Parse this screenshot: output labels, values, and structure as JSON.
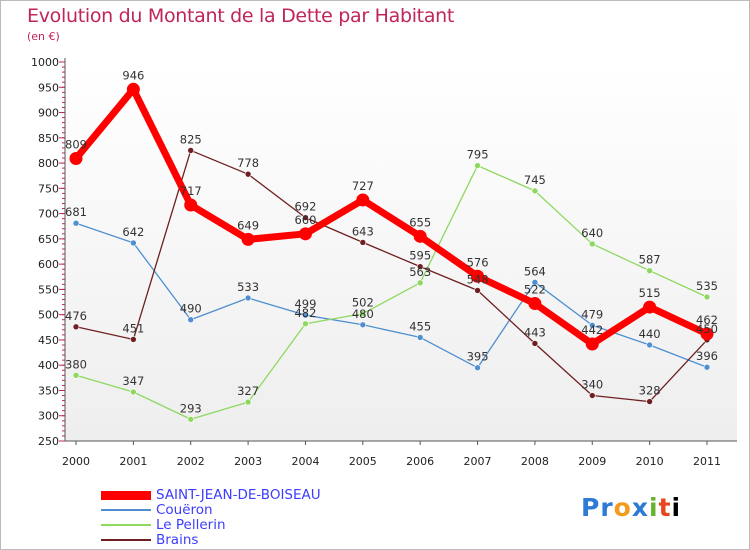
{
  "header": {
    "title": "Evolution du Montant de la Dette par Habitant",
    "unit": "(en €)"
  },
  "logo": {
    "text": "Proxiti"
  },
  "chart_data": {
    "type": "line",
    "title": "Evolution du Montant de la Dette par Habitant",
    "subtitle": "(en €)",
    "x": [
      "2000",
      "2001",
      "2002",
      "2003",
      "2004",
      "2005",
      "2006",
      "2007",
      "2008",
      "2009",
      "2010",
      "2011"
    ],
    "ylim": [
      250,
      1000
    ],
    "yticks": [
      250,
      300,
      350,
      400,
      450,
      500,
      550,
      600,
      650,
      700,
      750,
      800,
      850,
      900,
      950,
      1000
    ],
    "grid": false,
    "legend_position": "bottom-left",
    "series": [
      {
        "name": "SAINT-JEAN-DE-BOISEAU",
        "color": "#ff0000",
        "values": [
          809,
          946,
          717,
          649,
          660,
          727,
          655,
          576,
          522,
          442,
          515,
          462
        ]
      },
      {
        "name": "Couëron",
        "color": "#4f8fd0",
        "values": [
          681,
          642,
          490,
          533,
          499,
          480,
          455,
          395,
          564,
          479,
          440,
          396
        ]
      },
      {
        "name": "Le Pellerin",
        "color": "#8fd860",
        "values": [
          380,
          347,
          293,
          327,
          482,
          502,
          563,
          795,
          745,
          640,
          587,
          535
        ]
      },
      {
        "name": "Brains",
        "color": "#6e1f22",
        "values": [
          476,
          451,
          825,
          778,
          692,
          643,
          595,
          548,
          443,
          340,
          328,
          450
        ]
      }
    ]
  }
}
